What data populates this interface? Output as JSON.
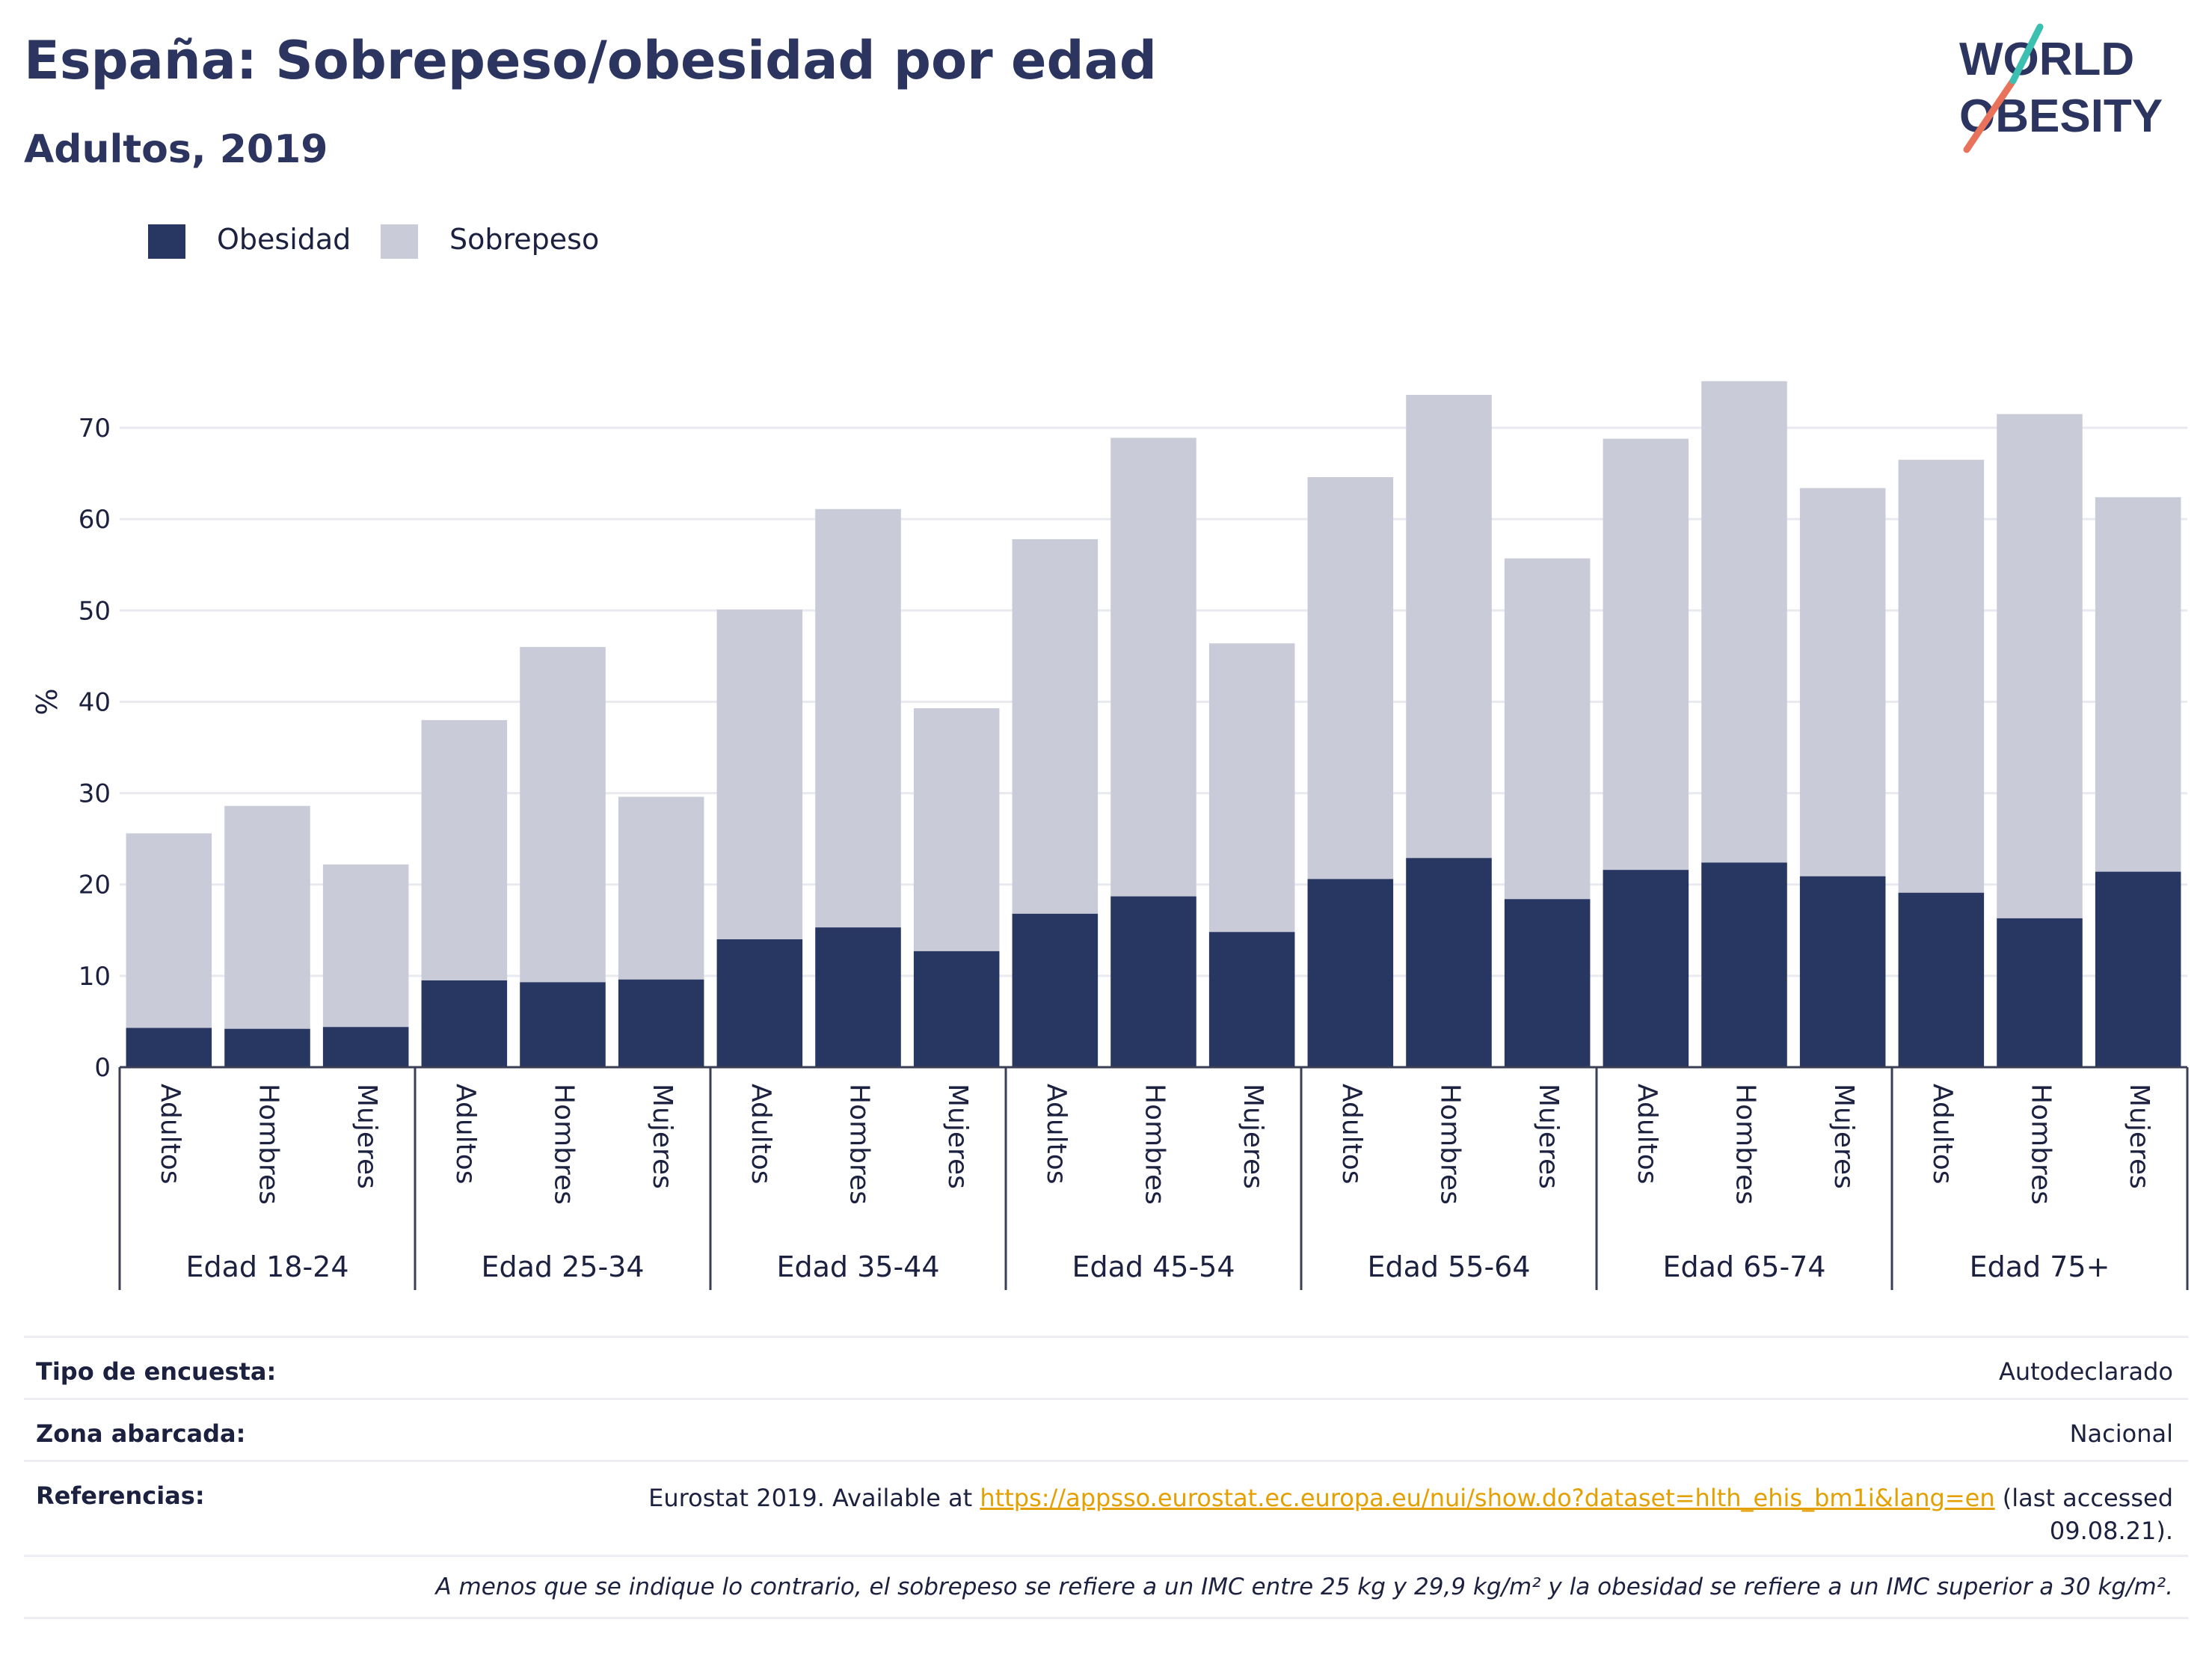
{
  "title": "España: Sobrepeso/obesidad por edad",
  "subtitle": "Adultos, 2019",
  "logo": {
    "line1": "WORLD",
    "line2": "OBESITY",
    "primary_color": "#2b3560",
    "accent_colors": [
      "#e8735a",
      "#3bbfb0"
    ]
  },
  "legend": [
    {
      "label": "Obesidad",
      "color": "#283662"
    },
    {
      "label": "Sobrepeso",
      "color": "#c9cbd8"
    }
  ],
  "chart_data": {
    "type": "bar",
    "stacked": true,
    "ylabel": "%",
    "ylim": [
      0,
      80
    ],
    "yticks": [
      0,
      10,
      20,
      30,
      40,
      50,
      60,
      70
    ],
    "grid": true,
    "legend_position": "top-left",
    "groups": [
      {
        "label": "Edad 18-24",
        "bars": [
          {
            "category": "Adultos",
            "obesidad": 4.3,
            "sobrepeso": 21.3
          },
          {
            "category": "Hombres",
            "obesidad": 4.2,
            "sobrepeso": 24.4
          },
          {
            "category": "Mujeres",
            "obesidad": 4.4,
            "sobrepeso": 17.8
          }
        ]
      },
      {
        "label": "Edad 25-34",
        "bars": [
          {
            "category": "Adultos",
            "obesidad": 9.5,
            "sobrepeso": 28.5
          },
          {
            "category": "Hombres",
            "obesidad": 9.3,
            "sobrepeso": 36.7
          },
          {
            "category": "Mujeres",
            "obesidad": 9.6,
            "sobrepeso": 20.0
          }
        ]
      },
      {
        "label": "Edad 35-44",
        "bars": [
          {
            "category": "Adultos",
            "obesidad": 14.0,
            "sobrepeso": 36.1
          },
          {
            "category": "Hombres",
            "obesidad": 15.3,
            "sobrepeso": 45.8
          },
          {
            "category": "Mujeres",
            "obesidad": 12.7,
            "sobrepeso": 26.6
          }
        ]
      },
      {
        "label": "Edad 45-54",
        "bars": [
          {
            "category": "Adultos",
            "obesidad": 16.8,
            "sobrepeso": 41.0
          },
          {
            "category": "Hombres",
            "obesidad": 18.7,
            "sobrepeso": 50.2
          },
          {
            "category": "Mujeres",
            "obesidad": 14.8,
            "sobrepeso": 31.6
          }
        ]
      },
      {
        "label": "Edad 55-64",
        "bars": [
          {
            "category": "Adultos",
            "obesidad": 20.6,
            "sobrepeso": 44.0
          },
          {
            "category": "Hombres",
            "obesidad": 22.9,
            "sobrepeso": 50.7
          },
          {
            "category": "Mujeres",
            "obesidad": 18.4,
            "sobrepeso": 37.3
          }
        ]
      },
      {
        "label": "Edad 65-74",
        "bars": [
          {
            "category": "Adultos",
            "obesidad": 21.6,
            "sobrepeso": 47.2
          },
          {
            "category": "Hombres",
            "obesidad": 22.4,
            "sobrepeso": 52.7
          },
          {
            "category": "Mujeres",
            "obesidad": 20.9,
            "sobrepeso": 42.5
          }
        ]
      },
      {
        "label": "Edad 75+",
        "bars": [
          {
            "category": "Adultos",
            "obesidad": 19.1,
            "sobrepeso": 47.4
          },
          {
            "category": "Hombres",
            "obesidad": 16.3,
            "sobrepeso": 55.2
          },
          {
            "category": "Mujeres",
            "obesidad": 21.4,
            "sobrepeso": 41.0
          }
        ]
      }
    ]
  },
  "footer": {
    "survey_label": "Tipo de encuesta:",
    "survey_value": "Autodeclarado",
    "area_label": "Zona abarcada:",
    "area_value": "Nacional",
    "refs_label": "Referencias:",
    "refs_prefix": "Eurostat 2019. Available at ",
    "refs_link": "https://appsso.eurostat.ec.europa.eu/nui/show.do?dataset=hlth_ehis_bm1i&lang=en",
    "refs_suffix": " (last accessed 09.08.21).",
    "note": "A menos que se indique lo contrario, el sobrepeso se refiere a un IMC entre 25 kg y 29,9 kg/m² y la obesidad se refiere a un IMC superior a 30 kg/m²."
  }
}
